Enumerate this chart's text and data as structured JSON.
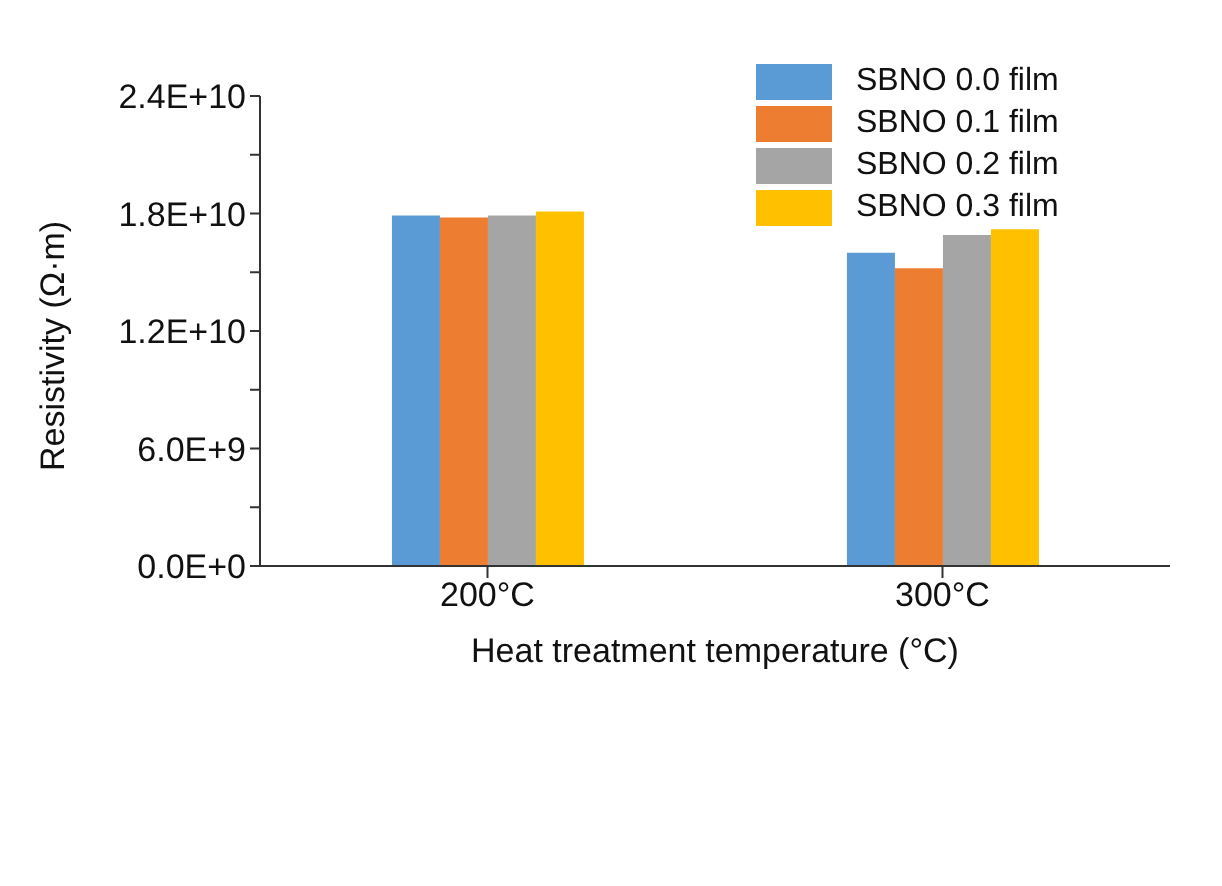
{
  "chart_data": {
    "type": "bar",
    "xlabel": "Heat treatment temperature (°C)",
    "ylabel": "Resistivity (Ω·m)",
    "categories": [
      "200°C",
      "300°C"
    ],
    "series": [
      {
        "name": "SBNO 0.0 film",
        "color": "#5b9bd5",
        "values": [
          17900000000.0,
          16000000000.0
        ]
      },
      {
        "name": "SBNO 0.1 film",
        "color": "#ed7d31",
        "values": [
          17800000000.0,
          15200000000.0
        ]
      },
      {
        "name": "SBNO 0.2 film",
        "color": "#a5a5a5",
        "values": [
          17900000000.0,
          16900000000.0
        ]
      },
      {
        "name": "SBNO 0.3 film",
        "color": "#ffc000",
        "values": [
          18100000000.0,
          17200000000.0
        ]
      }
    ],
    "ylim": [
      0,
      24000000000.0
    ],
    "yticks": [
      {
        "value": 0,
        "label": "0.0E+0"
      },
      {
        "value": 3000000000.0,
        "label": null
      },
      {
        "value": 6000000000.0,
        "label": "6.0E+9"
      },
      {
        "value": 9000000000.0,
        "label": null
      },
      {
        "value": 12000000000.0,
        "label": "1.2E+10"
      },
      {
        "value": 15000000000.0,
        "label": null
      },
      {
        "value": 18000000000.0,
        "label": "1.8E+10"
      },
      {
        "value": 21000000000.0,
        "label": null
      },
      {
        "value": 24000000000.0,
        "label": "2.4E+10"
      }
    ],
    "grid": false,
    "legend": "top right"
  }
}
